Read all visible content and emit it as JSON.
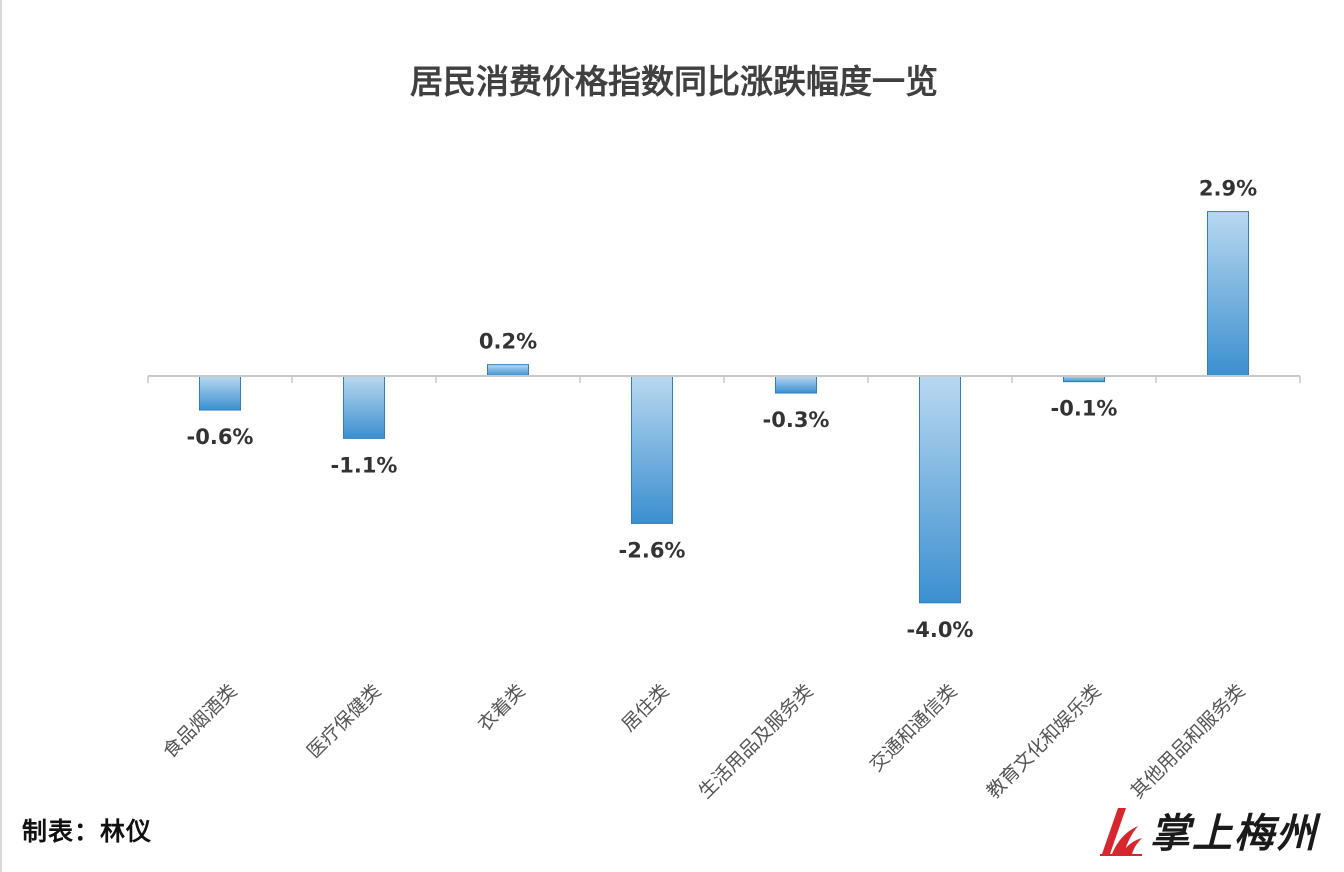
{
  "chart_data": {
    "type": "bar",
    "title": "居民消费价格指数同比涨跌幅度一览",
    "categories": [
      "食品烟酒类",
      "医疗保健类",
      "衣着类",
      "居住类",
      "生活用品及服务类",
      "交通和通信类",
      "教育文化和娱乐类",
      "其他用品和服务类"
    ],
    "values": [
      -0.6,
      -1.1,
      0.2,
      -2.6,
      -0.3,
      -4.0,
      -0.1,
      2.9
    ],
    "value_labels": [
      "-0.6%",
      "-1.1%",
      "0.2%",
      "-2.6%",
      "-0.3%",
      "-4.0%",
      "-0.1%",
      "2.9%"
    ],
    "unit": "%",
    "ylim": [
      -4.0,
      2.9
    ],
    "grid": false,
    "bar_color_light": "#b9d8f0",
    "bar_color_dark": "#3b8fd0",
    "bar_edge_color": "#2f7cc0",
    "axis_color": "#c8c8c8"
  },
  "footer": {
    "credit": "制表：林仪",
    "logo_text": "掌上梅州",
    "logo_accent": "#d8262e"
  }
}
